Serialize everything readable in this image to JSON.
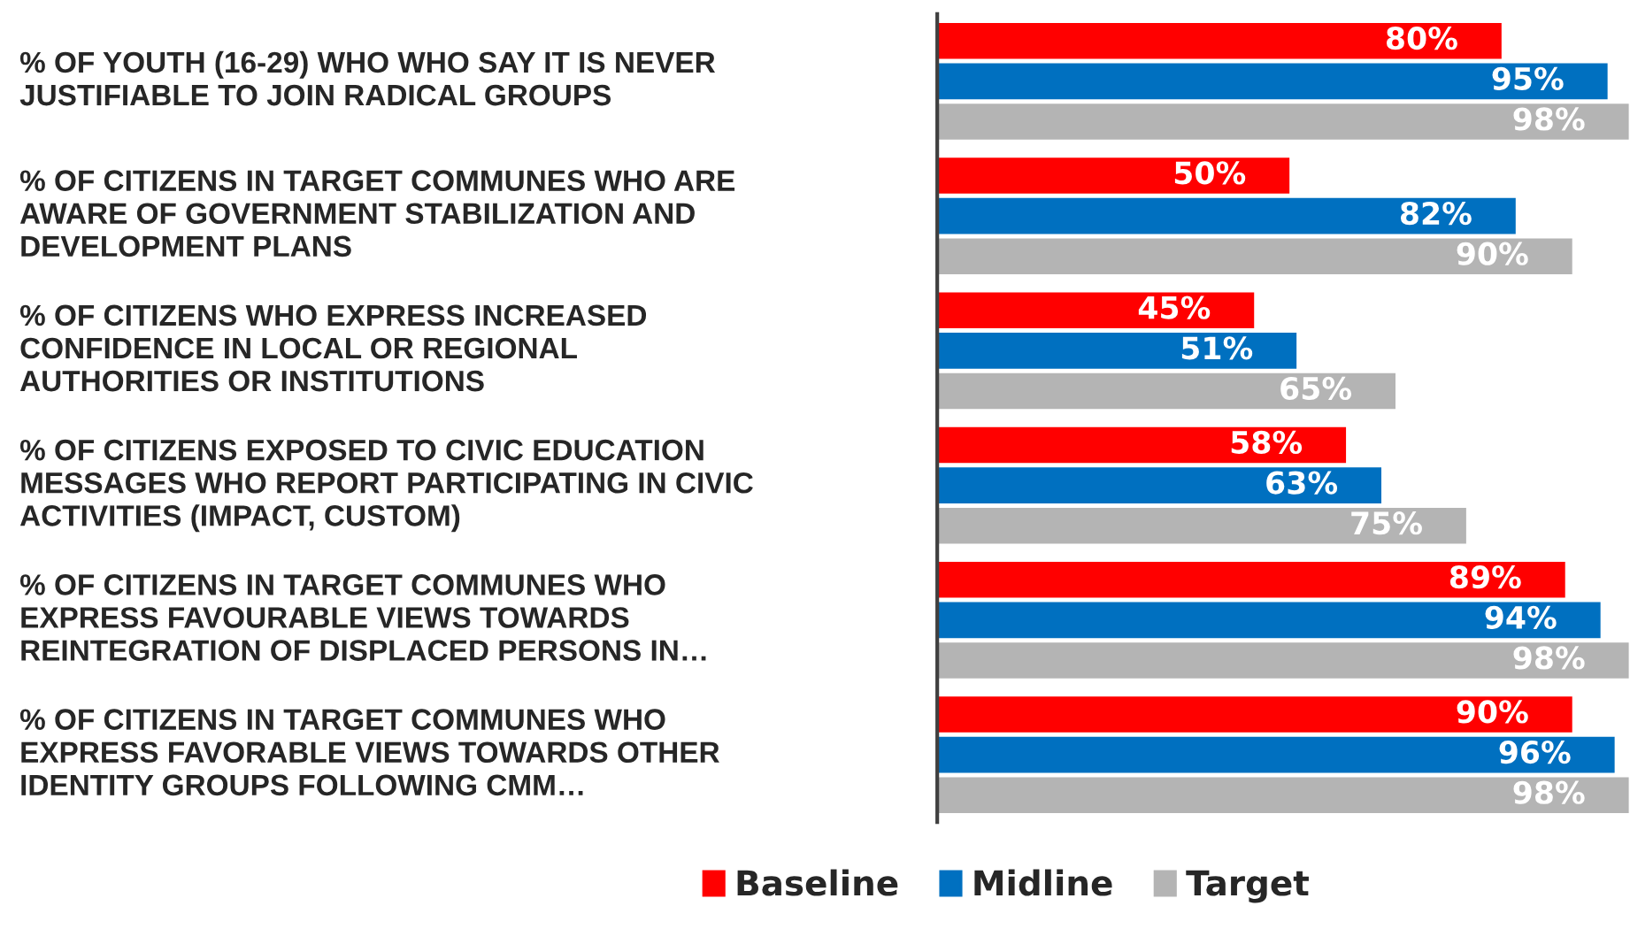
{
  "chart_data": {
    "type": "bar",
    "orientation": "horizontal",
    "legend": "bottom",
    "categories": [
      "% OF YOUTH (16-29) WHO WHO SAY IT IS NEVER\nJUSTIFIABLE TO JOIN RADICAL GROUPS",
      "% OF CITIZENS IN TARGET COMMUNES WHO ARE\nAWARE OF GOVERNMENT STABILIZATION AND\nDEVELOPMENT PLANS",
      "% OF CITIZENS WHO EXPRESS INCREASED\nCONFIDENCE IN LOCAL OR REGIONAL\nAUTHORITIES OR INSTITUTIONS",
      "% OF CITIZENS EXPOSED TO CIVIC EDUCATION\nMESSAGES WHO REPORT PARTICIPATING IN CIVIC\nACTIVITIES (IMPACT, CUSTOM)",
      "% OF CITIZENS IN TARGET COMMUNES WHO\nEXPRESS FAVOURABLE VIEWS TOWARDS\nREINTEGRATION OF DISPLACED PERSONS IN…",
      "% OF CITIZENS IN TARGET COMMUNES WHO\nEXPRESS FAVORABLE VIEWS TOWARDS OTHER\nIDENTITY GROUPS FOLLOWING CMM…"
    ],
    "series": [
      {
        "name": "Baseline",
        "color": "#ff0000",
        "values": [
          80,
          50,
          45,
          58,
          89,
          90
        ],
        "value_labels": [
          "80%",
          "50%",
          "45%",
          "58%",
          "89%",
          "90%"
        ]
      },
      {
        "name": "Midline",
        "color": "#0070c0",
        "values": [
          95,
          82,
          51,
          63,
          94,
          96
        ],
        "value_labels": [
          "95%",
          "82%",
          "51%",
          "63%",
          "94%",
          "96%"
        ]
      },
      {
        "name": "Target",
        "color": "#b4b4b4",
        "values": [
          98,
          90,
          65,
          75,
          98,
          98
        ],
        "value_labels": [
          "98%",
          "90%",
          "65%",
          "75%",
          "98%",
          "98%"
        ]
      }
    ]
  }
}
